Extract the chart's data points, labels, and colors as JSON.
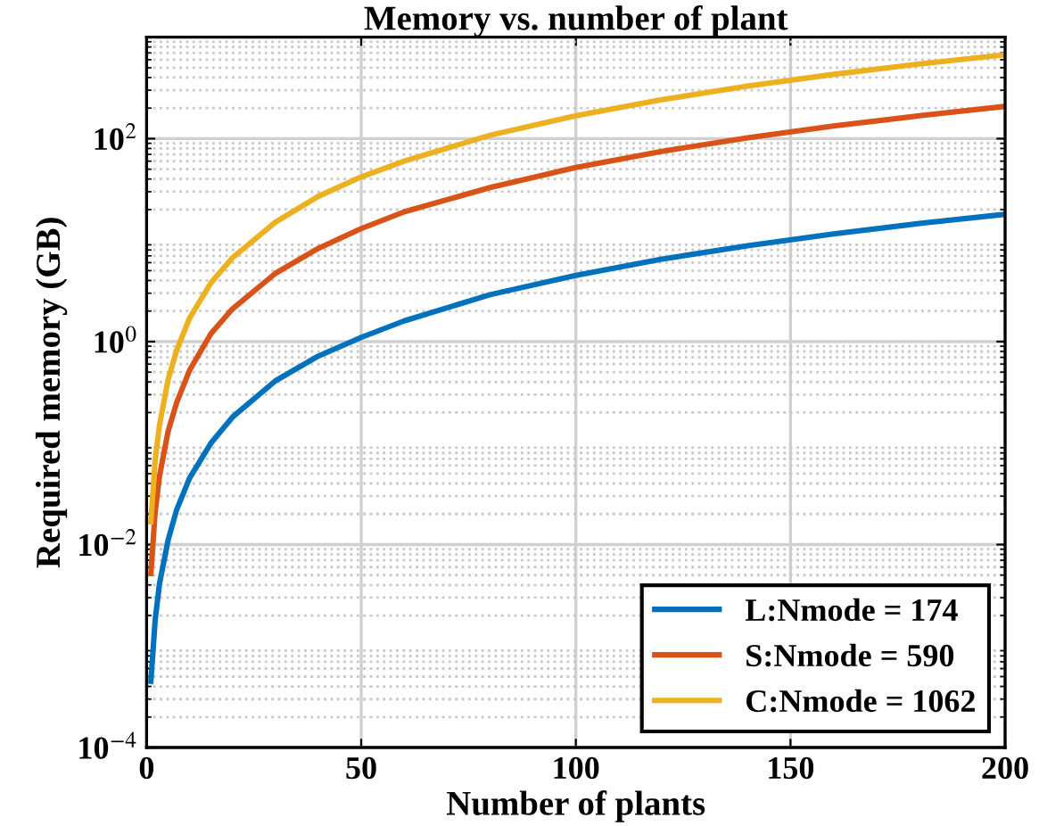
{
  "chart_data": {
    "type": "line",
    "title": "Memory vs. number of plant",
    "xlabel": "Number of plants",
    "ylabel": "Required memory (GB)",
    "x": [
      1,
      2,
      3,
      5,
      7,
      10,
      15,
      20,
      30,
      40,
      50,
      60,
      80,
      100,
      120,
      140,
      160,
      180,
      200
    ],
    "series": [
      {
        "name": "L:Nmode = 174",
        "color": "#0072bd",
        "values": [
          0.00045,
          0.0018,
          0.0041,
          0.011,
          0.022,
          0.045,
          0.1,
          0.18,
          0.41,
          0.72,
          1.1,
          1.6,
          2.9,
          4.5,
          6.5,
          8.8,
          11.5,
          14.6,
          18
        ]
      },
      {
        "name": "S:Nmode = 590",
        "color": "#d95319",
        "values": [
          0.0052,
          0.021,
          0.047,
          0.13,
          0.25,
          0.52,
          1.2,
          2.1,
          4.7,
          8.3,
          13,
          19,
          33,
          52,
          75,
          102,
          133,
          168,
          208
        ]
      },
      {
        "name": "C:Nmode = 1062",
        "color": "#edb120",
        "values": [
          0.0168,
          0.067,
          0.15,
          0.42,
          0.82,
          1.7,
          3.8,
          6.7,
          15,
          27,
          42,
          60,
          108,
          168,
          242,
          329,
          430,
          544,
          672
        ]
      }
    ],
    "log": "y",
    "xlim": [
      0,
      200
    ],
    "xticks": [
      0,
      50,
      100,
      150,
      200
    ],
    "ylim": [
      0.0001,
      1000
    ],
    "yticks": [
      {
        "value": 0.0001,
        "label": "10$^{−4}$"
      },
      {
        "value": 0.01,
        "label": "10$^{−2}$"
      },
      {
        "value": 1,
        "label": "10$^{0}$"
      },
      {
        "value": 100,
        "label": "10$^{2}$"
      }
    ],
    "grid": true,
    "legend": "bottom right",
    "marker": "none",
    "line_style": "solid"
  }
}
